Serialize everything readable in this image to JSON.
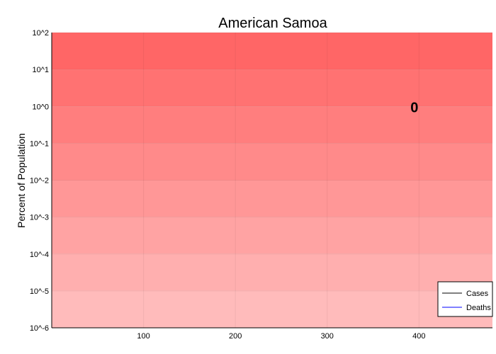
{
  "chart_data": {
    "type": "line",
    "title": "American Samoa",
    "xlabel": "",
    "ylabel": "Percent of Population",
    "x_ticks": [
      100,
      200,
      300,
      400
    ],
    "xlim": [
      0,
      480
    ],
    "y_scale": "log10",
    "y_ticks": [
      "10^2",
      "10^1",
      "10^0",
      "10^-1",
      "10^-2",
      "10^-3",
      "10^-4",
      "10^-5",
      "10^-6"
    ],
    "ylim_exponents": [
      -6,
      2
    ],
    "grid": true,
    "legend_position": "bottom-right",
    "series": [
      {
        "name": "Cases",
        "color": "#000000",
        "x": [],
        "y": []
      },
      {
        "name": "Deaths",
        "color": "#0000ff",
        "x": [],
        "y": []
      }
    ],
    "annotations": [
      {
        "text": "0",
        "x": 395,
        "y_exponent": 0
      }
    ],
    "background_bands": {
      "top_color": "#ff6666",
      "bottom_color": "#ffbbbb",
      "count": 8
    }
  }
}
